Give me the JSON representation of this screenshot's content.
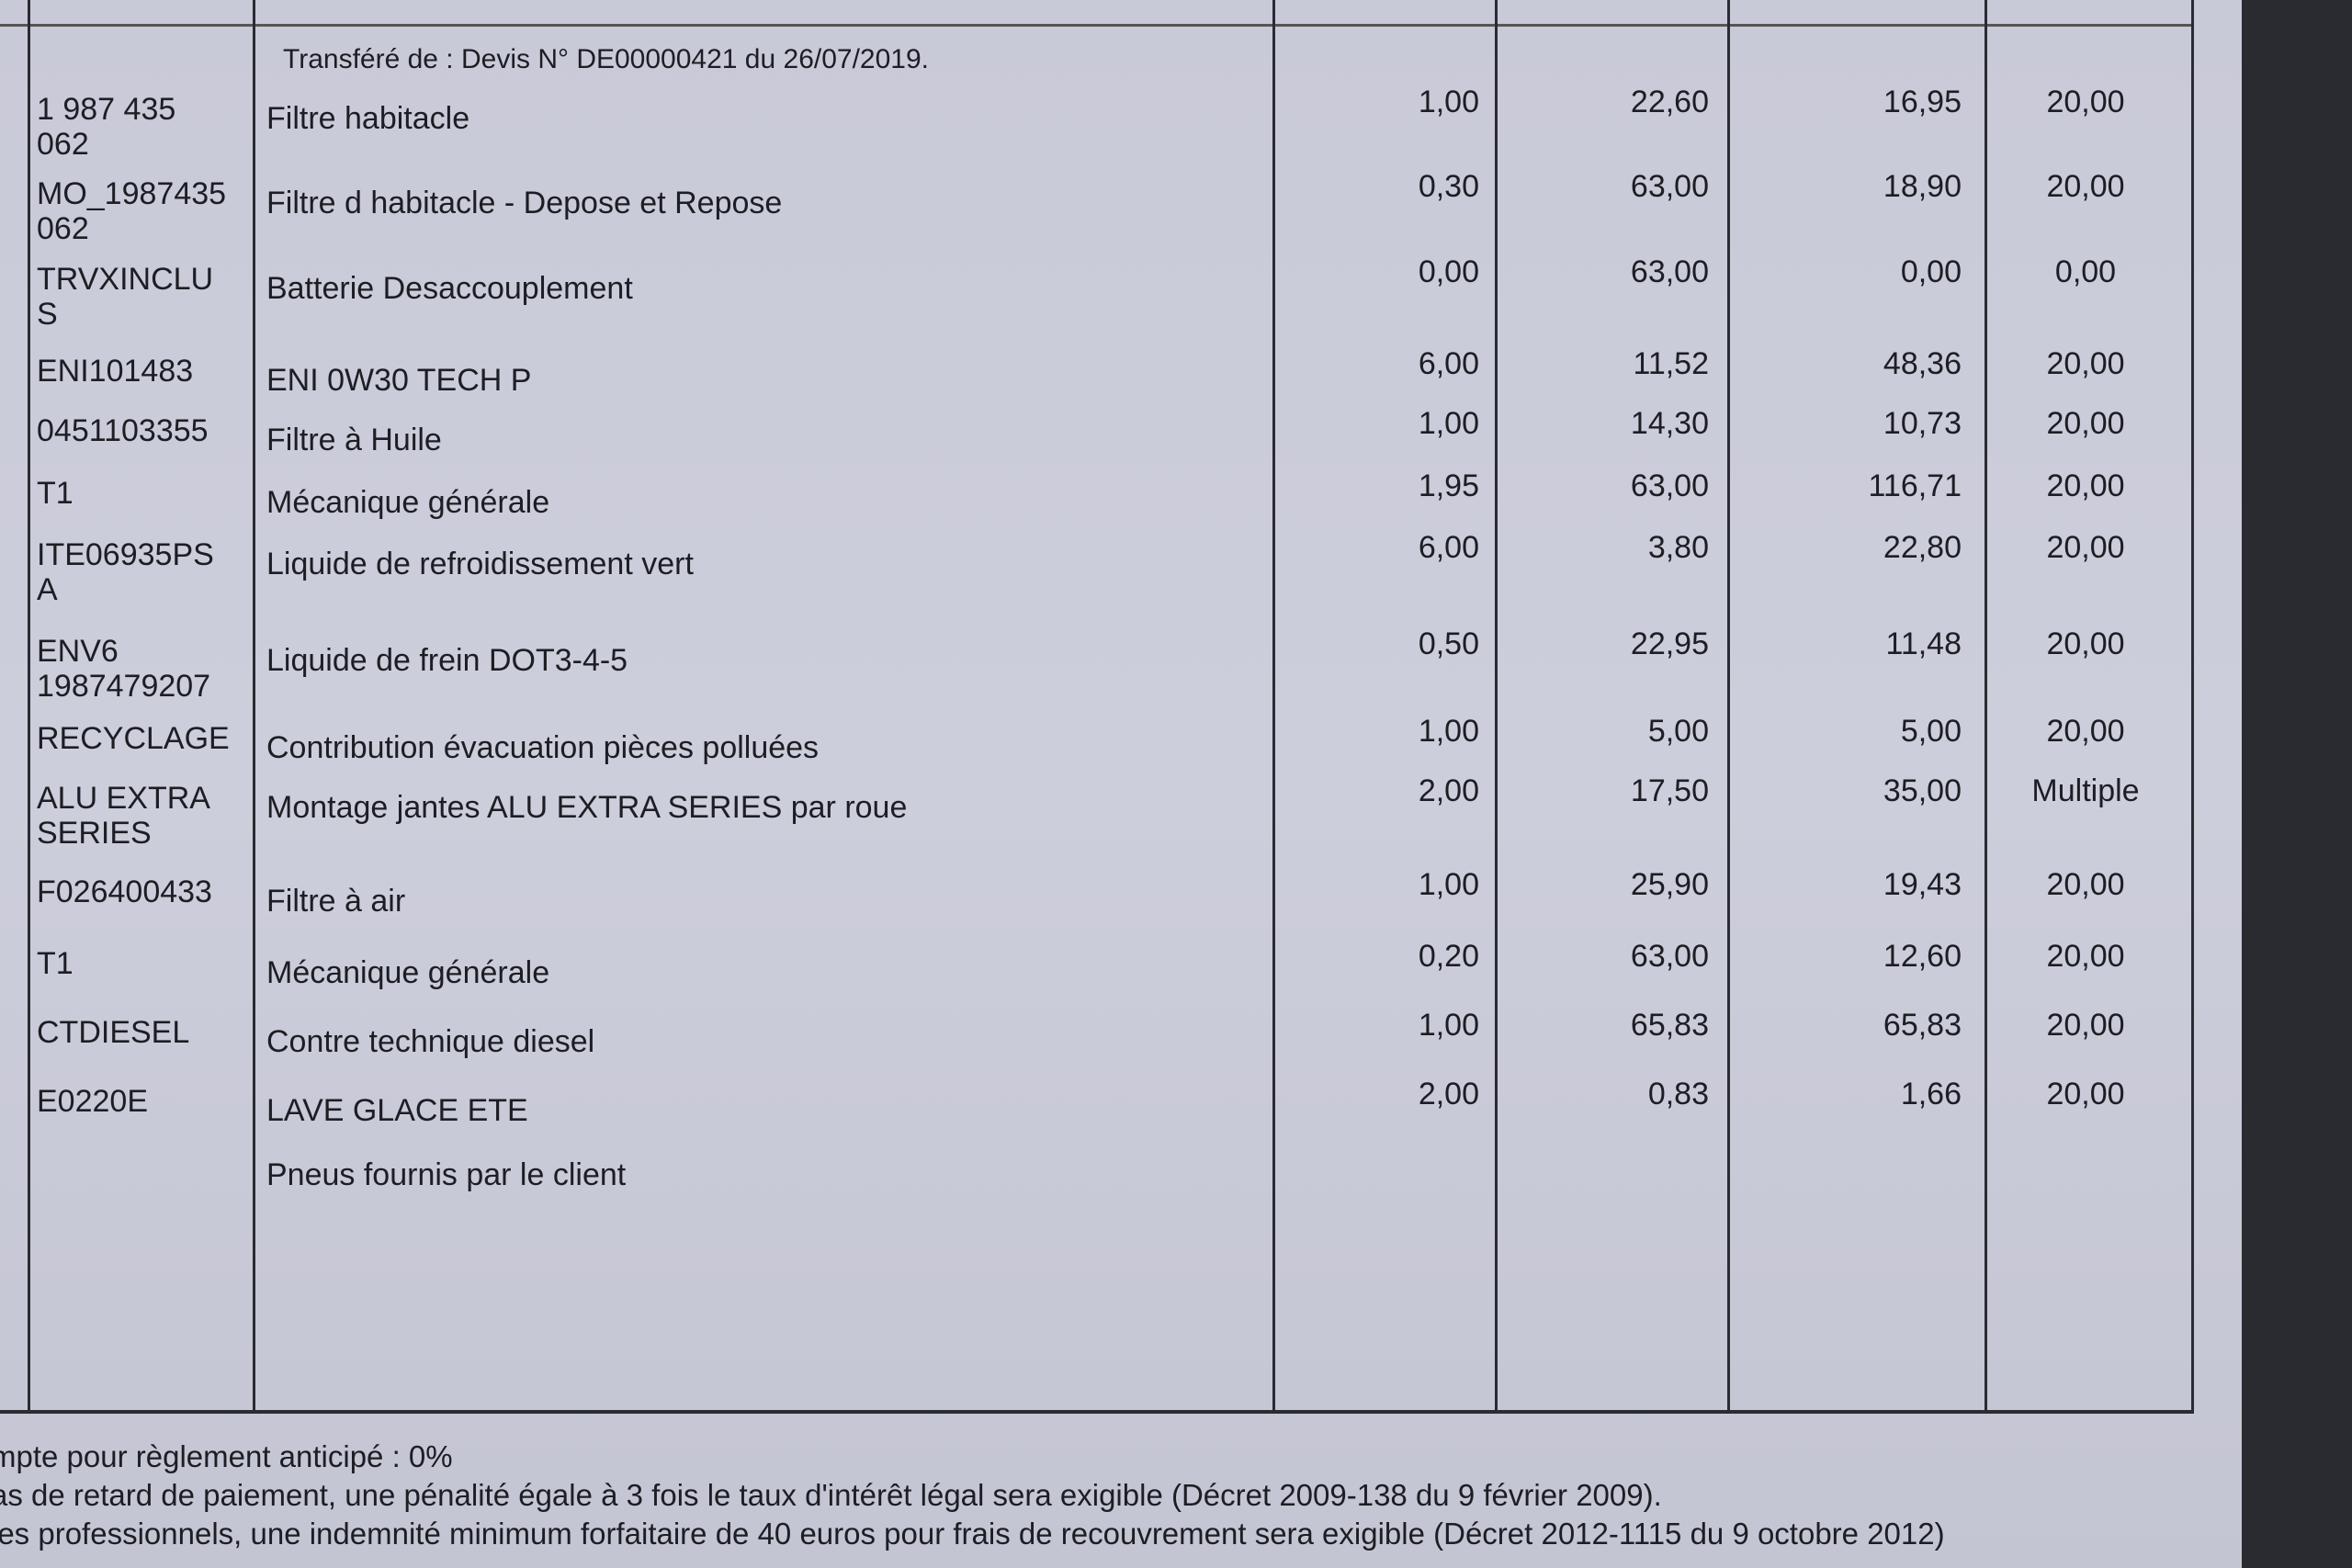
{
  "transfer_note": "Transféré de : Devis N° DE00000421 du 26/07/2019.",
  "rows": [
    {
      "code": "1 987 435\n062",
      "description": "Filtre habitacle",
      "qty": "1,00",
      "unit_price": "22,60",
      "total": "16,95",
      "vat": "20,00"
    },
    {
      "code": "MO_1987435\n062",
      "description": "Filtre d habitacle - Depose et Repose",
      "qty": "0,30",
      "unit_price": "63,00",
      "total": "18,90",
      "vat": "20,00"
    },
    {
      "code": "TRVXINCLU\nS",
      "description": "Batterie  Desaccouplement",
      "qty": "0,00",
      "unit_price": "63,00",
      "total": "0,00",
      "vat": "0,00"
    },
    {
      "code": "ENI101483",
      "description": "ENI 0W30 TECH P",
      "qty": "6,00",
      "unit_price": "11,52",
      "total": "48,36",
      "vat": "20,00"
    },
    {
      "code": "0451103355",
      "description": "Filtre à Huile",
      "qty": "1,00",
      "unit_price": "14,30",
      "total": "10,73",
      "vat": "20,00"
    },
    {
      "code": "T1",
      "description": "Mécanique générale",
      "qty": "1,95",
      "unit_price": "63,00",
      "total": "116,71",
      "vat": "20,00"
    },
    {
      "code": "ITE06935PS\nA",
      "description": "Liquide de refroidissement vert",
      "qty": "6,00",
      "unit_price": "3,80",
      "total": "22,80",
      "vat": "20,00"
    },
    {
      "code": "ENV6\n1987479207",
      "description": "Liquide de frein DOT3-4-5",
      "qty": "0,50",
      "unit_price": "22,95",
      "total": "11,48",
      "vat": "20,00"
    },
    {
      "code": "RECYCLAGE",
      "description": "Contribution évacuation pièces polluées",
      "qty": "1,00",
      "unit_price": "5,00",
      "total": "5,00",
      "vat": "20,00"
    },
    {
      "code": "ALU EXTRA\nSERIES",
      "description": "Montage jantes ALU EXTRA SERIES par roue",
      "qty": "2,00",
      "unit_price": "17,50",
      "total": "35,00",
      "vat": "Multiple"
    },
    {
      "code": "F026400433",
      "description": "Filtre à air",
      "qty": "1,00",
      "unit_price": "25,90",
      "total": "19,43",
      "vat": "20,00"
    },
    {
      "code": "T1",
      "description": "Mécanique générale",
      "qty": "0,20",
      "unit_price": "63,00",
      "total": "12,60",
      "vat": "20,00"
    },
    {
      "code": "CTDIESEL",
      "description": "Contre technique diesel",
      "qty": "1,00",
      "unit_price": "65,83",
      "total": "65,83",
      "vat": "20,00"
    },
    {
      "code": "E0220E",
      "description": "LAVE GLACE ETE",
      "qty": "2,00",
      "unit_price": "0,83",
      "total": "1,66",
      "vat": "20,00"
    },
    {
      "code": "",
      "description": "Pneus fournis par le client",
      "qty": "",
      "unit_price": "",
      "total": "",
      "vat": ""
    }
  ],
  "footer": [
    "mpte pour règlement anticipé : 0%",
    "as de retard de paiement, une pénalité égale à 3 fois le taux d'intérêt légal sera exigible (Décret 2009-138 du 9 février 2009).",
    "les professionnels, une indemnité minimum forfaitaire de 40 euros pour frais de recouvrement sera exigible (Décret 2012-1115 du 9 octobre 2012)"
  ]
}
